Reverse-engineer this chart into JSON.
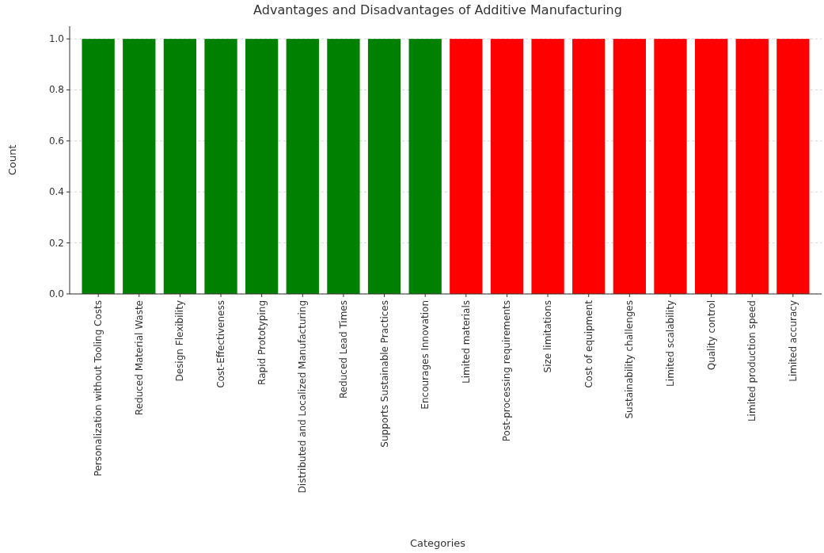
{
  "chart_data": {
    "type": "bar",
    "title": "Advantages and Disadvantages of Additive Manufacturing",
    "xlabel": "Categories",
    "ylabel": "Count",
    "categories": [
      "Personalization without Tooling Costs",
      "Reduced Material Waste",
      "Design Flexibility",
      "Cost-Effectiveness",
      "Rapid Prototyping",
      "Distributed and Localized Manufacturing",
      "Reduced Lead Times",
      "Supports Sustainable Practices",
      "Encourages Innovation",
      "Limited materials",
      "Post-processing requirements",
      "Size limitations",
      "Cost of equipment",
      "Sustainability challenges",
      "Limited scalability",
      "Quality control",
      "Limited production speed",
      "Limited accuracy"
    ],
    "values": [
      1,
      1,
      1,
      1,
      1,
      1,
      1,
      1,
      1,
      1,
      1,
      1,
      1,
      1,
      1,
      1,
      1,
      1
    ],
    "colors": [
      "#008000",
      "#008000",
      "#008000",
      "#008000",
      "#008000",
      "#008000",
      "#008000",
      "#008000",
      "#008000",
      "#ff0000",
      "#ff0000",
      "#ff0000",
      "#ff0000",
      "#ff0000",
      "#ff0000",
      "#ff0000",
      "#ff0000",
      "#ff0000"
    ],
    "ylim": [
      0,
      1.05
    ],
    "yticks": [
      {
        "value": 0,
        "label": "0.0"
      },
      {
        "value": 0.2,
        "label": "0.2"
      },
      {
        "value": 0.4,
        "label": "0.4"
      },
      {
        "value": 0.6,
        "label": "0.6"
      },
      {
        "value": 0.8,
        "label": "0.8"
      },
      {
        "value": 1,
        "label": "1.0"
      }
    ],
    "grid": "y"
  }
}
